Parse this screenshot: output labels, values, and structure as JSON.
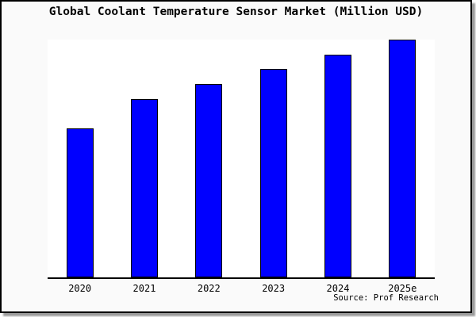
{
  "chart_data": {
    "type": "bar",
    "title": "Global Coolant Temperature Sensor Market (Million USD)",
    "categories": [
      "2020",
      "2021",
      "2022",
      "2023",
      "2024",
      "2025e"
    ],
    "values": [
      62.7,
      75.0,
      81.4,
      87.6,
      93.7,
      100.0
    ],
    "value_note": "y-axis not drawn and unlabeled; values are relative bar heights indexed to 2025e = 100",
    "xlabel": "",
    "ylabel": "",
    "ylim": [
      0,
      100
    ],
    "grid": false,
    "legend": false,
    "y_axis_shown": false
  },
  "source_note": "Source: Prof Research",
  "colors": {
    "bar_fill": "#0000ff",
    "bar_border": "#000000",
    "card_background": "#fafafa",
    "plot_background": "#ffffff",
    "axis": "#000000",
    "frame": "#000000",
    "text": "#000000"
  }
}
